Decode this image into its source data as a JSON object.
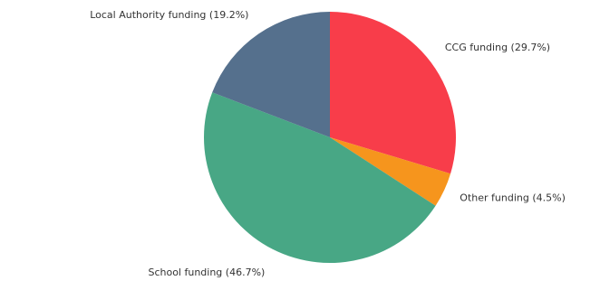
{
  "chart_data": {
    "type": "pie",
    "title": "",
    "slices": [
      {
        "label": "CCG funding",
        "pct_label": "(29.7%)",
        "value": 29.7,
        "color": "#f83d4a"
      },
      {
        "label": "Other funding",
        "pct_label": "(4.5%)",
        "value": 4.5,
        "color": "#f6951d"
      },
      {
        "label": "School funding",
        "pct_label": "(46.7%)",
        "value": 46.7,
        "color": "#48a785"
      },
      {
        "label": "Local Authority funding",
        "pct_label": "(19.2%)",
        "value": 19.2,
        "color": "#55708d"
      }
    ],
    "start_angle_deg": 90,
    "direction": "clockwise",
    "legend": "none"
  }
}
